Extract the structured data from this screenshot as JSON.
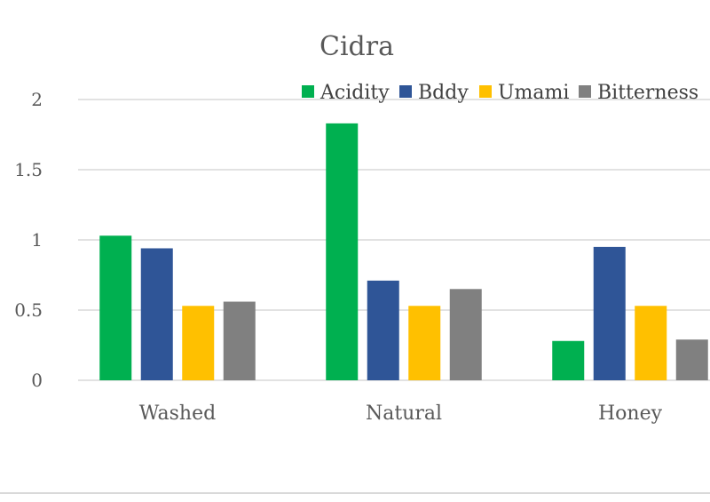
{
  "chart_data": {
    "type": "bar",
    "title": "Cidra",
    "xlabel": "",
    "ylabel": "",
    "categories": [
      "Washed",
      "Natural",
      "Honey"
    ],
    "series": [
      {
        "name": "Acidity",
        "color": "#00b050",
        "values": [
          1.03,
          1.83,
          0.28
        ]
      },
      {
        "name": "Bddy",
        "color": "#2f5597",
        "values": [
          0.94,
          0.71,
          0.95
        ]
      },
      {
        "name": "Umami",
        "color": "#ffc000",
        "values": [
          0.53,
          0.53,
          0.53
        ]
      },
      {
        "name": "Bitterness",
        "color": "#808080",
        "values": [
          0.56,
          0.65,
          0.29
        ]
      }
    ],
    "ylim": [
      0,
      2
    ],
    "yticks": [
      {
        "value": 0,
        "label": "0"
      },
      {
        "value": 0.5,
        "label": "0.5"
      },
      {
        "value": 1,
        "label": "1"
      },
      {
        "value": 1.5,
        "label": "1.5"
      },
      {
        "value": 2,
        "label": "2"
      }
    ],
    "grid": true,
    "legend_position": "top-right"
  }
}
